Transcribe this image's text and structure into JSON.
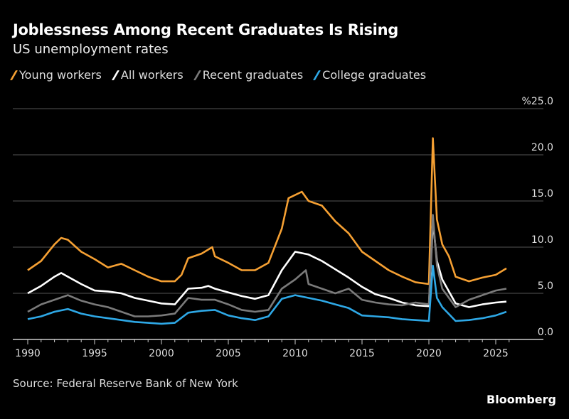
{
  "chart_data": {
    "type": "line",
    "title": "Joblessness Among Recent Graduates Is Rising",
    "subtitle": "US unemployment rates",
    "source": "Source: Federal Reserve Bank of New York",
    "brand": "Bloomberg",
    "ylim": [
      0,
      25
    ],
    "xlim": [
      1989.1,
      2026.5
    ],
    "yticks": [
      "0.0",
      "5.0",
      "10.0",
      "15.0",
      "20.0",
      "%25.0"
    ],
    "ytick_values": [
      0,
      5,
      10,
      15,
      20,
      25
    ],
    "xticks": [
      "1990",
      "1995",
      "2000",
      "2005",
      "2010",
      "2015",
      "2020",
      "2025"
    ],
    "xtick_values": [
      1990,
      1995,
      2000,
      2005,
      2010,
      2015,
      2020,
      2025
    ],
    "grid": true,
    "legend_placement": "top-left",
    "series": [
      {
        "name": "Young workers",
        "color": "#f5a033",
        "points": [
          [
            1990,
            7.5
          ],
          [
            1991,
            8.5
          ],
          [
            1992,
            10.3
          ],
          [
            1992.5,
            11.0
          ],
          [
            1993,
            10.8
          ],
          [
            1994,
            9.5
          ],
          [
            1995,
            8.7
          ],
          [
            1996,
            7.8
          ],
          [
            1997,
            8.2
          ],
          [
            1998,
            7.5
          ],
          [
            1999,
            6.8
          ],
          [
            2000,
            6.3
          ],
          [
            2001,
            6.3
          ],
          [
            2001.5,
            7.0
          ],
          [
            2002,
            8.8
          ],
          [
            2003,
            9.3
          ],
          [
            2003.8,
            10.0
          ],
          [
            2004,
            9.0
          ],
          [
            2005,
            8.3
          ],
          [
            2006,
            7.5
          ],
          [
            2007,
            7.5
          ],
          [
            2008,
            8.3
          ],
          [
            2009,
            12.0
          ],
          [
            2009.5,
            15.3
          ],
          [
            2010.5,
            16.0
          ],
          [
            2011,
            15.0
          ],
          [
            2012,
            14.5
          ],
          [
            2013,
            12.8
          ],
          [
            2014,
            11.5
          ],
          [
            2015,
            9.5
          ],
          [
            2016,
            8.5
          ],
          [
            2017,
            7.5
          ],
          [
            2018,
            6.8
          ],
          [
            2019,
            6.2
          ],
          [
            2020.0,
            6.0
          ],
          [
            2020.3,
            21.8
          ],
          [
            2020.6,
            13.0
          ],
          [
            2021,
            10.3
          ],
          [
            2021.5,
            9.0
          ],
          [
            2022,
            6.8
          ],
          [
            2023,
            6.3
          ],
          [
            2024,
            6.7
          ],
          [
            2025,
            7.0
          ],
          [
            2025.8,
            7.7
          ]
        ]
      },
      {
        "name": "All workers",
        "color": "#ffffff",
        "points": [
          [
            1990,
            5.0
          ],
          [
            1991,
            5.8
          ],
          [
            1992,
            6.8
          ],
          [
            1992.5,
            7.2
          ],
          [
            1993,
            6.8
          ],
          [
            1994,
            6.0
          ],
          [
            1995,
            5.3
          ],
          [
            1996,
            5.2
          ],
          [
            1997,
            5.0
          ],
          [
            1998,
            4.5
          ],
          [
            1999,
            4.2
          ],
          [
            2000,
            3.9
          ],
          [
            2001,
            3.8
          ],
          [
            2002,
            5.5
          ],
          [
            2003,
            5.6
          ],
          [
            2003.5,
            5.8
          ],
          [
            2004,
            5.5
          ],
          [
            2005,
            5.1
          ],
          [
            2006,
            4.7
          ],
          [
            2007,
            4.4
          ],
          [
            2008,
            4.8
          ],
          [
            2009,
            7.5
          ],
          [
            2010,
            9.5
          ],
          [
            2011,
            9.2
          ],
          [
            2012,
            8.5
          ],
          [
            2013,
            7.6
          ],
          [
            2014,
            6.7
          ],
          [
            2015,
            5.7
          ],
          [
            2016,
            4.9
          ],
          [
            2017,
            4.5
          ],
          [
            2018,
            4.0
          ],
          [
            2019,
            3.7
          ],
          [
            2020.0,
            3.6
          ],
          [
            2020.3,
            12.8
          ],
          [
            2020.6,
            8.5
          ],
          [
            2021,
            6.5
          ],
          [
            2022,
            3.9
          ],
          [
            2023,
            3.5
          ],
          [
            2024,
            3.8
          ],
          [
            2025,
            4.0
          ],
          [
            2025.8,
            4.1
          ]
        ]
      },
      {
        "name": "Recent graduates",
        "color": "#7a7a7a",
        "points": [
          [
            1990,
            3.0
          ],
          [
            1991,
            3.8
          ],
          [
            1992,
            4.3
          ],
          [
            1993,
            4.8
          ],
          [
            1994,
            4.2
          ],
          [
            1995,
            3.8
          ],
          [
            1996,
            3.5
          ],
          [
            1997,
            3.0
          ],
          [
            1998,
            2.5
          ],
          [
            1999,
            2.5
          ],
          [
            2000,
            2.6
          ],
          [
            2001,
            2.8
          ],
          [
            2002,
            4.5
          ],
          [
            2003,
            4.3
          ],
          [
            2004,
            4.3
          ],
          [
            2005,
            3.8
          ],
          [
            2006,
            3.2
          ],
          [
            2007,
            3.0
          ],
          [
            2008,
            3.2
          ],
          [
            2009,
            5.5
          ],
          [
            2010,
            6.5
          ],
          [
            2010.8,
            7.5
          ],
          [
            2011,
            6.0
          ],
          [
            2012,
            5.5
          ],
          [
            2013,
            5.0
          ],
          [
            2014,
            5.5
          ],
          [
            2015,
            4.3
          ],
          [
            2016,
            4.0
          ],
          [
            2017,
            3.8
          ],
          [
            2018,
            3.7
          ],
          [
            2019,
            4.0
          ],
          [
            2020.0,
            3.8
          ],
          [
            2020.3,
            13.5
          ],
          [
            2020.6,
            8.0
          ],
          [
            2021,
            5.5
          ],
          [
            2022,
            3.5
          ],
          [
            2023,
            4.3
          ],
          [
            2024,
            4.8
          ],
          [
            2025,
            5.3
          ],
          [
            2025.8,
            5.5
          ]
        ]
      },
      {
        "name": "College graduates",
        "color": "#2ea8e6",
        "points": [
          [
            1990,
            2.2
          ],
          [
            1991,
            2.5
          ],
          [
            1992,
            3.0
          ],
          [
            1993,
            3.3
          ],
          [
            1994,
            2.8
          ],
          [
            1995,
            2.5
          ],
          [
            1996,
            2.3
          ],
          [
            1997,
            2.1
          ],
          [
            1998,
            1.9
          ],
          [
            1999,
            1.8
          ],
          [
            2000,
            1.7
          ],
          [
            2001,
            1.8
          ],
          [
            2002,
            2.9
          ],
          [
            2003,
            3.1
          ],
          [
            2004,
            3.2
          ],
          [
            2005,
            2.6
          ],
          [
            2006,
            2.3
          ],
          [
            2007,
            2.1
          ],
          [
            2008,
            2.5
          ],
          [
            2009,
            4.4
          ],
          [
            2010,
            4.8
          ],
          [
            2011,
            4.5
          ],
          [
            2012,
            4.2
          ],
          [
            2013,
            3.8
          ],
          [
            2014,
            3.4
          ],
          [
            2015,
            2.6
          ],
          [
            2016,
            2.5
          ],
          [
            2017,
            2.4
          ],
          [
            2018,
            2.2
          ],
          [
            2019,
            2.1
          ],
          [
            2020.0,
            2.0
          ],
          [
            2020.3,
            8.0
          ],
          [
            2020.6,
            4.5
          ],
          [
            2021,
            3.5
          ],
          [
            2022,
            2.0
          ],
          [
            2023,
            2.1
          ],
          [
            2024,
            2.3
          ],
          [
            2025,
            2.6
          ],
          [
            2025.8,
            3.0
          ]
        ]
      }
    ]
  }
}
